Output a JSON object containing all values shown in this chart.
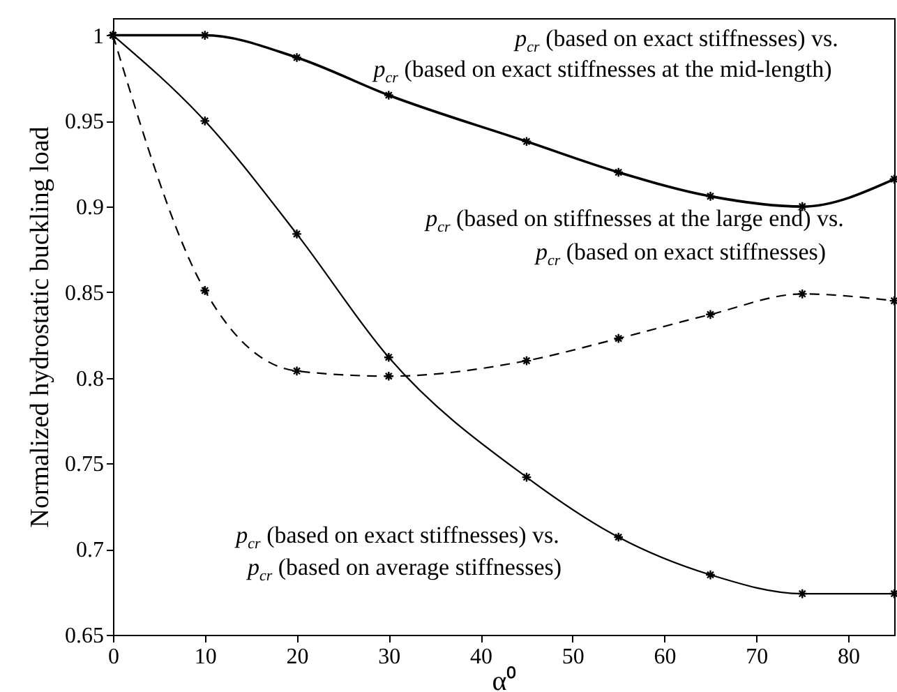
{
  "chart_data": {
    "type": "line",
    "xlabel": "α⁰",
    "ylabel": "Normalized hydrostatic buckling load",
    "x": [
      0,
      10,
      20,
      30,
      45,
      55,
      65,
      75,
      85
    ],
    "xlim": [
      0,
      85
    ],
    "xticks": [
      0,
      10,
      20,
      30,
      40,
      50,
      60,
      70,
      80
    ],
    "ylim": [
      0.65,
      1.01
    ],
    "yticks": [
      0.65,
      {
        "value": 0.7,
        "label": "0.7"
      },
      0.75,
      {
        "value": 0.8,
        "label": "0.8"
      },
      0.85,
      {
        "value": 0.9,
        "label": "0.9"
      },
      0.95,
      {
        "value": 1,
        "label": "1"
      }
    ],
    "marker": "cross",
    "series": [
      {
        "color": "#000000",
        "line_style": "solid",
        "values": [
          1,
          1.0,
          0.987,
          0.965,
          0.938,
          0.92,
          0.906,
          0.9,
          0.916
        ]
      },
      {
        "color": "#000000",
        "line_style": "dashed",
        "values": [
          1,
          0.851,
          0.804,
          0.801,
          0.81,
          0.823,
          0.837,
          0.849,
          0.845
        ]
      },
      {
        "color": "#000000",
        "line_style": "solid",
        "values": [
          1,
          0.95,
          0.884,
          0.812,
          0.742,
          0.707,
          0.685,
          0.674,
          0.674
        ]
      }
    ],
    "annotations": [
      "p$_{cr}$ (based on exact stiffnesses) vs.",
      "p$_{cr}$ (based on exact stiffnesses at the mid-length)",
      "p$_{cr}$ (based on stiffnesses at the large end) vs.",
      "p$_{cr}$ (based on exact stiffnesses)",
      "p$_{cr}$ (based on exact stiffnesses) vs.",
      "p$_{cr}$ (based on average stiffnesses)"
    ]
  }
}
